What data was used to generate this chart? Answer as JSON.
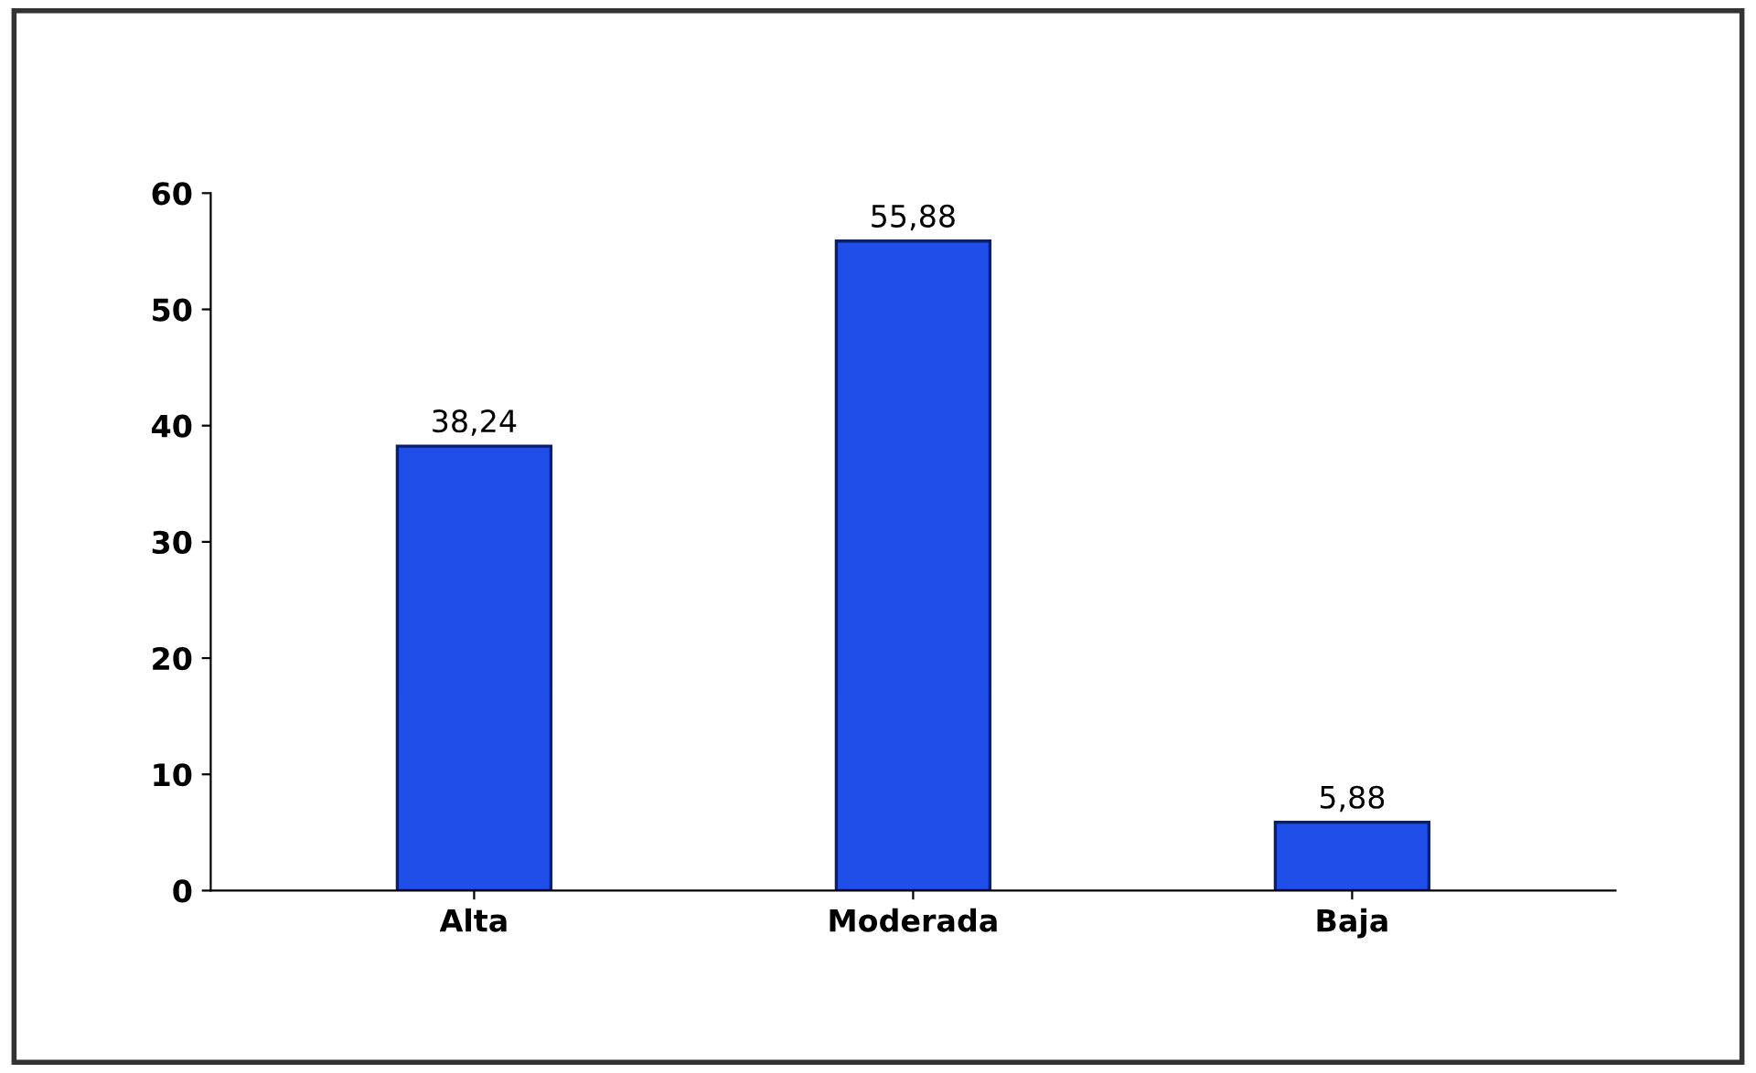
{
  "chart_data": {
    "type": "bar",
    "categories": [
      "Alta",
      "Moderada",
      "Baja"
    ],
    "values": [
      38.24,
      55.88,
      5.88
    ],
    "value_labels": [
      "38,24",
      "55,88",
      "5,88"
    ],
    "color": "#1f4fe8",
    "ylim": [
      0,
      60
    ],
    "yticks": [
      0,
      10,
      20,
      30,
      40,
      50,
      60
    ],
    "grid": false
  }
}
